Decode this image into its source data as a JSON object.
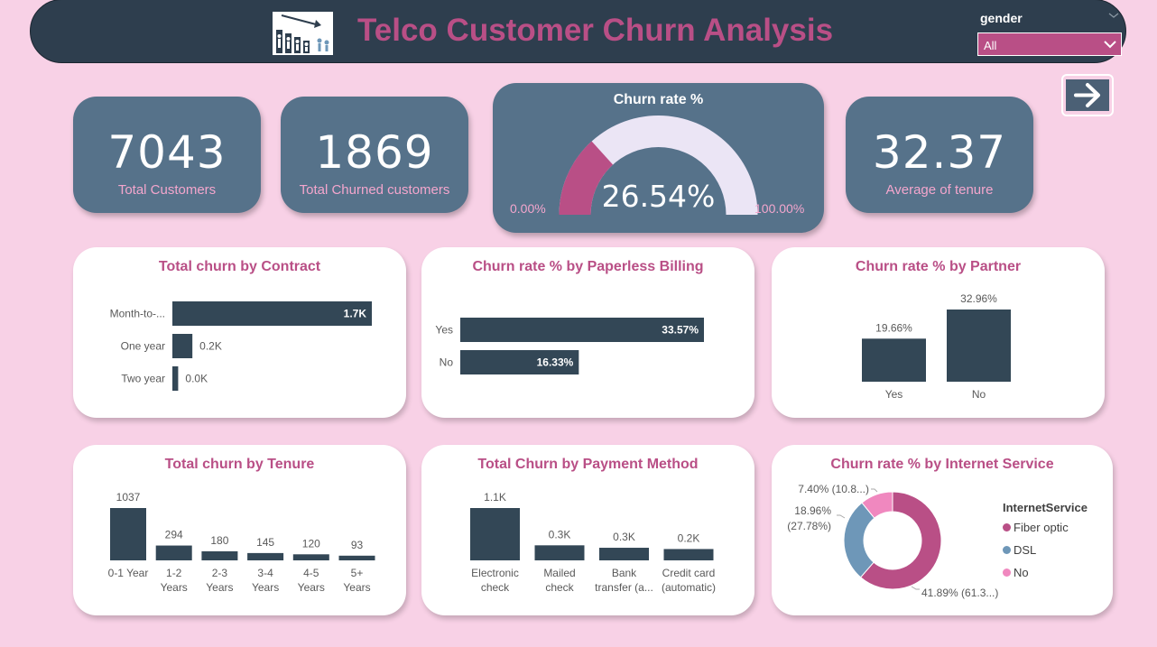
{
  "header": {
    "title": "Telco Customer Churn Analysis",
    "slicer": {
      "label": "gender",
      "value": "All"
    },
    "logo_icon": "declining-bar-chart-people-icon"
  },
  "colors": {
    "background": "#f8d1e6",
    "header": "#2e3e4e",
    "accent": "#b94f86",
    "kpi": "#56728a",
    "bar": "#334756",
    "gauge_track": "#ebe5f5",
    "dsl": "#6e97b8",
    "no": "#f088bf"
  },
  "kpis": [
    {
      "value": "7043",
      "label": "Total Customers"
    },
    {
      "value": "1869",
      "label": "Total Churned customers"
    },
    {
      "value": "32.37",
      "label": "Average of tenure"
    }
  ],
  "gauge": {
    "title": "Churn rate %",
    "value_label": "26.54%",
    "value": 26.54,
    "min_label": "0.00%",
    "max_label": "100.00%"
  },
  "nav": {
    "icon": "arrow-right-icon"
  },
  "chart_data": [
    {
      "id": "contract",
      "type": "bar",
      "orientation": "horizontal",
      "title": "Total churn by Contract",
      "categories": [
        "Month-to-...",
        "One year",
        "Two year"
      ],
      "values": [
        1655,
        166,
        48
      ],
      "labels": [
        "1.7K",
        "0.2K",
        "0.0K"
      ]
    },
    {
      "id": "paperless",
      "type": "bar",
      "orientation": "horizontal",
      "title": "Churn rate % by Paperless Billing",
      "categories": [
        "Yes",
        "No"
      ],
      "values": [
        33.57,
        16.33
      ],
      "labels": [
        "33.57%",
        "16.33%"
      ]
    },
    {
      "id": "partner",
      "type": "bar",
      "orientation": "vertical",
      "title": "Churn rate % by Partner",
      "categories": [
        "Yes",
        "No"
      ],
      "values": [
        19.66,
        32.96
      ],
      "labels": [
        "19.66%",
        "32.96%"
      ]
    },
    {
      "id": "tenure",
      "type": "bar",
      "orientation": "vertical",
      "title": "Total churn by Tenure",
      "categories": [
        [
          "0-1 Year"
        ],
        [
          "1-2",
          "Years"
        ],
        [
          "2-3",
          "Years"
        ],
        [
          "3-4",
          "Years"
        ],
        [
          "4-5",
          "Years"
        ],
        [
          "5+",
          "Years"
        ]
      ],
      "values": [
        1037,
        294,
        180,
        145,
        120,
        93
      ],
      "labels": [
        "1037",
        "294",
        "180",
        "145",
        "120",
        "93"
      ]
    },
    {
      "id": "payment",
      "type": "bar",
      "orientation": "vertical",
      "title": "Total Churn by Payment Method",
      "categories": [
        [
          "Electronic",
          "check"
        ],
        [
          "Mailed",
          "check"
        ],
        [
          "Bank",
          "transfer (a..."
        ],
        [
          "Credit card",
          "(automatic)"
        ]
      ],
      "values": [
        1071,
        308,
        258,
        232
      ],
      "labels": [
        "1.1K",
        "0.3K",
        "0.3K",
        "0.2K"
      ]
    },
    {
      "id": "internet",
      "type": "pie",
      "donut": true,
      "title": "Churn rate % by Internet Service",
      "legend_title": "InternetService",
      "categories": [
        "Fiber optic",
        "DSL",
        "No"
      ],
      "values": [
        41.89,
        18.96,
        7.4
      ],
      "labels": [
        "41.89% (61.3...)",
        "18.96% (27.78%)",
        "7.40% (10.8...)"
      ],
      "colors": [
        "#b94f86",
        "#6e97b8",
        "#f088bf"
      ]
    }
  ]
}
